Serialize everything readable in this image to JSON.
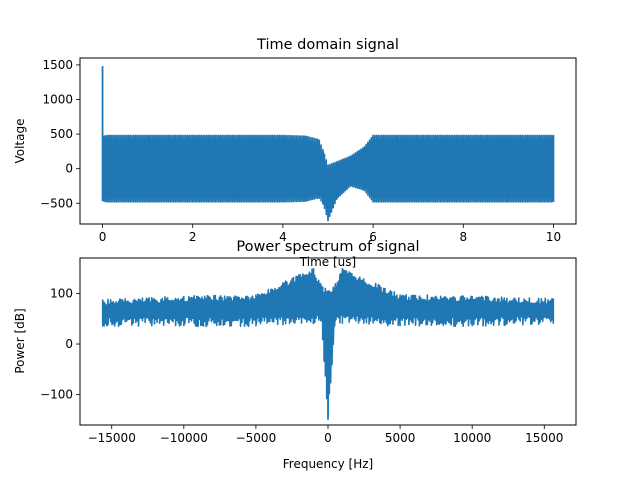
{
  "chart_data": [
    {
      "type": "line",
      "title": "Time domain signal",
      "xlabel": "Time [us]",
      "ylabel": "Voltage",
      "xlim": [
        -0.5,
        10.5
      ],
      "ylim": [
        -800,
        1600
      ],
      "xticks": [
        "0",
        "2",
        "4",
        "6",
        "8",
        "10"
      ],
      "yticks": [
        "−500",
        "0",
        "500",
        "1000",
        "1500"
      ],
      "grid": false,
      "color": "#1f77b4",
      "series": [
        {
          "x": [
            0,
            0.02,
            0.1,
            1,
            2,
            3,
            4,
            4.5,
            4.8,
            4.9,
            5.0,
            5.2,
            5.5,
            5.8,
            6.0,
            6.5,
            7,
            8,
            9,
            10
          ],
          "y_max": [
            1480,
            470,
            480,
            480,
            480,
            480,
            480,
            470,
            420,
            250,
            50,
            100,
            180,
            310,
            480,
            480,
            480,
            480,
            480,
            480
          ],
          "y_min": [
            -460,
            -470,
            -480,
            -480,
            -480,
            -480,
            -480,
            -470,
            -420,
            -520,
            -750,
            -430,
            -250,
            -310,
            -480,
            -480,
            -480,
            -480,
            -480,
            -480
          ]
        }
      ]
    },
    {
      "type": "line",
      "title": "Power spectrum of signal",
      "xlabel": "Frequency [Hz]",
      "ylabel": "Power [dB]",
      "xlim": [
        -17200,
        17200
      ],
      "ylim": [
        -160,
        170
      ],
      "xticks": [
        "−15000",
        "−10000",
        "−5000",
        "0",
        "5000",
        "10000",
        "15000"
      ],
      "yticks": [
        "−100",
        "0",
        "100"
      ],
      "grid": false,
      "color": "#1f77b4",
      "series": [
        {
          "x": [
            -15625,
            -10000,
            -5000,
            -1000,
            -500,
            0,
            500,
            1000,
            5000,
            10000,
            15625
          ],
          "y_max": [
            88,
            95,
            98,
            150,
            120,
            105,
            120,
            150,
            98,
            95,
            90
          ],
          "y_min": [
            35,
            35,
            35,
            40,
            45,
            -150,
            45,
            40,
            35,
            35,
            40
          ]
        }
      ]
    }
  ]
}
